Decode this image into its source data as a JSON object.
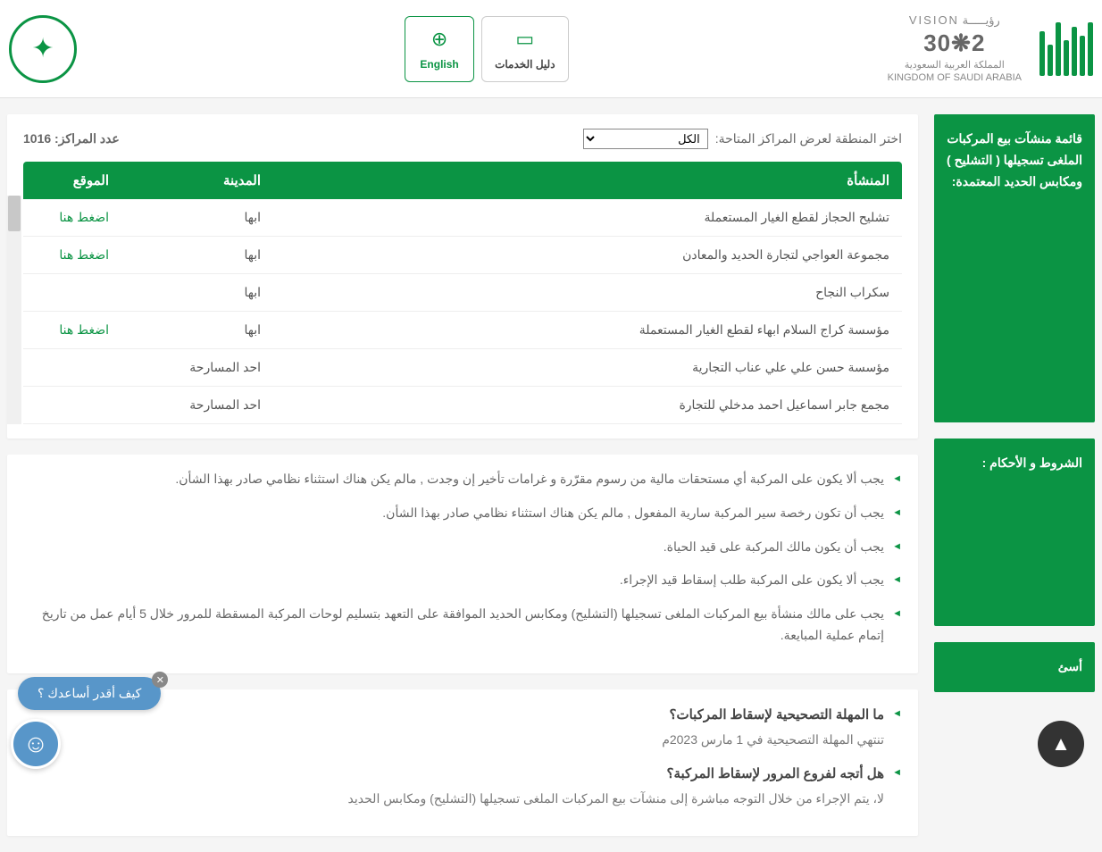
{
  "header": {
    "english_label": "English",
    "services_guide_label": "دليل الخدمات",
    "vision_top": "رؤيـــــة  VISION",
    "vision_year": "2❋30",
    "vision_sub1": "المملكة العربية السعودية",
    "vision_sub2": "KINGDOM OF SAUDI ARABIA"
  },
  "sidebar": {
    "card1": "قائمة منشآت بيع المركبات الملغى تسجيلها ( التشليح ) ومكابس الحديد المعتمدة:",
    "card2": "الشروط و الأحكام :",
    "card3": "أسئ"
  },
  "filter": {
    "label": "اختر المنطقة لعرض المراكز المتاحة:",
    "selected": "الكل",
    "count_label": "عدد المراكز:",
    "count_value": "1016"
  },
  "table": {
    "headers": {
      "org": "المنشأة",
      "city": "المدينة",
      "loc": "الموقع"
    },
    "rows": [
      {
        "org": "تشليح الحجاز لقطع الغيار المستعملة",
        "city": "ابها",
        "loc": "اضغط هنا"
      },
      {
        "org": "مجموعة العواجي لتجارة الحديد والمعادن",
        "city": "ابها",
        "loc": "اضغط هنا"
      },
      {
        "org": "سكراب النجاح",
        "city": "ابها",
        "loc": ""
      },
      {
        "org": "مؤسسة كراج السلام ابهاء لقطع الغيار المستعملة",
        "city": "ابها",
        "loc": "اضغط هنا"
      },
      {
        "org": "مؤسسة حسن علي علي عناب التجارية",
        "city": "احد المسارحة",
        "loc": ""
      },
      {
        "org": "مجمع جابر اسماعيل احمد مدخلي للتجارة",
        "city": "احد المسارحة",
        "loc": ""
      }
    ]
  },
  "terms": [
    "يجب ألا يكون على المركبة أي مستحقات مالية من رسوم مقرّرة و غرامات تأخير إن وجدت , مالم يكن هناك استثناء نظامي صادر بهذا الشأن.",
    "يجب أن تكون رخصة سير المركبة سارية المفعول , مالم يكن هناك استثناء نظامي صادر بهذا الشأن.",
    "يجب أن يكون مالك المركبة على قيد الحياة.",
    "يجب ألا يكون على المركبة طلب إسقاط قيد الإجراء.",
    "يجب على مالك منشأة بيع المركبات الملغى تسجيلها (التشليح) ومكابس الحديد الموافقة على التعهد بتسليم لوحات المركبة المسقطة للمرور خلال 5 أيام عمل من تاريخ إتمام عملية المبايعة."
  ],
  "faq": [
    {
      "q": "ما المهلة التصحيحية لإسقاط المركبات؟",
      "a": "تنتهي المهلة التصحيحية في 1 مارس 2023م"
    },
    {
      "q": "هل أتجه لفروع المرور لإسقاط المركبة؟",
      "a": "لا، يتم الإجراء من خلال التوجه مباشرة إلى منشآت بيع المركبات الملغى تسجيلها (التشليح) ومكابس الحديد"
    }
  ],
  "chat": {
    "text": "كيف أقدر أساعدك ؟"
  },
  "colors": {
    "primary": "#0b9444",
    "chat": "#5896c9",
    "text": "#666",
    "bg": "#f5f5f5"
  }
}
